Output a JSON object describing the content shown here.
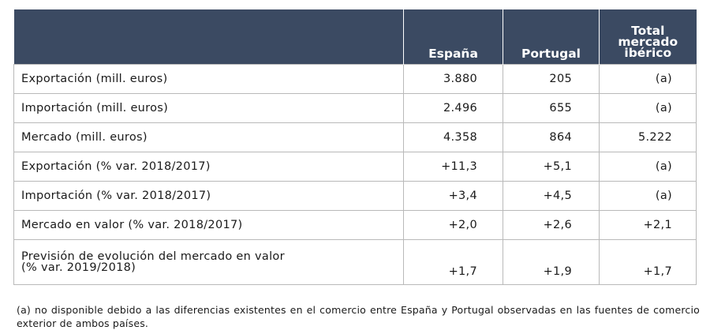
{
  "table": {
    "headers": {
      "blank": "",
      "espana": "España",
      "portugal": "Portugal",
      "total": "Total mercado ibérico",
      "total_lines": [
        "Total",
        "mercado",
        "ibérico"
      ]
    },
    "rows": [
      {
        "label": "Exportación (mill. euros)",
        "espana": "3.880",
        "portugal": "205",
        "total": "(a)"
      },
      {
        "label": "Importación (mill. euros)",
        "espana": "2.496",
        "portugal": "655",
        "total": "(a)"
      },
      {
        "label": "Mercado (mill. euros)",
        "espana": "4.358",
        "portugal": "864",
        "total": "5.222"
      },
      {
        "label": "Exportación (% var. 2018/2017)",
        "espana": "+11,3",
        "portugal": "+5,1",
        "total": "(a)"
      },
      {
        "label": "Importación (% var. 2018/2017)",
        "espana": "+3,4",
        "portugal": "+4,5",
        "total": "(a)"
      },
      {
        "label": "Mercado en valor (% var. 2018/2017)",
        "espana": "+2,0",
        "portugal": "+2,6",
        "total": "+2,1"
      },
      {
        "label_line1": "Previsión de evolución del mercado en valor",
        "label_line2": "(% var. 2019/2018)",
        "espana": "+1,7",
        "portugal": "+1,9",
        "total": "+1,7"
      }
    ]
  },
  "footnote": "(a) no disponible debido a las diferencias existentes en el comercio entre España y Portugal observadas en las fuentes de comercio exterior de ambos países."
}
